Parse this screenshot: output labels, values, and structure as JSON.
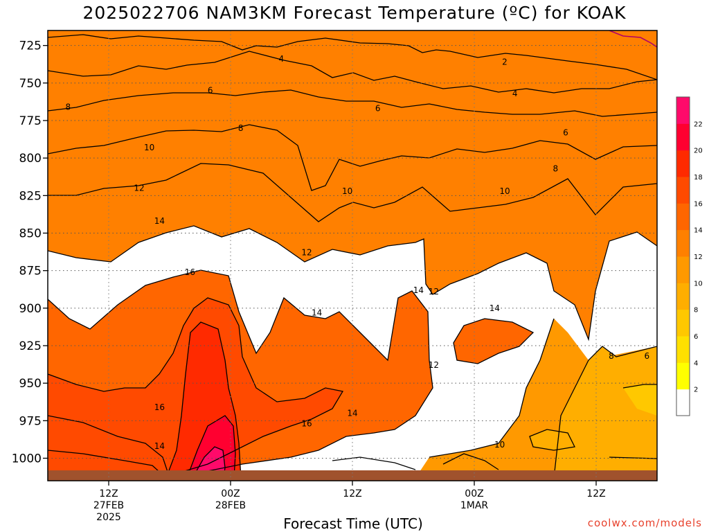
{
  "chart_data": {
    "type": "heatmap",
    "title": "2025022706 NAM3KM Forecast Temperature (ºC) for KOAK",
    "xlabel": "Forecast Time (UTC)",
    "ylabel": "",
    "y_ticks": [
      725,
      750,
      775,
      800,
      825,
      850,
      875,
      900,
      925,
      950,
      975,
      1000
    ],
    "ylim": [
      1015,
      715
    ],
    "x_ticks": [
      {
        "hour": 6,
        "line1": "12Z",
        "line2": "27FEB",
        "line3": "2025"
      },
      {
        "hour": 18,
        "line1": "00Z",
        "line2": "28FEB",
        "line3": ""
      },
      {
        "hour": 30,
        "line1": "12Z",
        "line2": "",
        "line3": ""
      },
      {
        "hour": 42,
        "line1": "00Z",
        "line2": "1MAR",
        "line3": ""
      },
      {
        "hour": 54,
        "line1": "12Z",
        "line2": "",
        "line3": ""
      }
    ],
    "xlim": [
      0,
      60
    ],
    "grid": true,
    "colorbar": {
      "levels": [
        0,
        2,
        4,
        6,
        8,
        10,
        12,
        14,
        16,
        18,
        20,
        22,
        24
      ],
      "tick_labels": [
        "2",
        "4",
        "6",
        "8",
        "10",
        "12",
        "14",
        "16",
        "18",
        "20",
        "22"
      ],
      "colors": [
        "#ffffff",
        "#ffff00",
        "#ffe000",
        "#ffc800",
        "#ffae00",
        "#ff9900",
        "#ff8000",
        "#ff6600",
        "#ff4a00",
        "#ff2a00",
        "#ff0030",
        "#ff0a6a"
      ]
    },
    "ground_color": "#a0522d",
    "contour_labels": [
      {
        "value": "2",
        "hour": 45.0,
        "pressure": 736
      },
      {
        "value": "4",
        "hour": 23.0,
        "pressure": 734
      },
      {
        "value": "4",
        "hour": 46.0,
        "pressure": 757
      },
      {
        "value": "6",
        "hour": 16.0,
        "pressure": 755
      },
      {
        "value": "6",
        "hour": 32.5,
        "pressure": 767
      },
      {
        "value": "6",
        "hour": 51.0,
        "pressure": 783
      },
      {
        "value": "8",
        "hour": 2.0,
        "pressure": 766
      },
      {
        "value": "8",
        "hour": 19.0,
        "pressure": 780
      },
      {
        "value": "8",
        "hour": 50.0,
        "pressure": 807
      },
      {
        "value": "10",
        "hour": 10.0,
        "pressure": 793
      },
      {
        "value": "10",
        "hour": 29.5,
        "pressure": 822
      },
      {
        "value": "10",
        "hour": 45.0,
        "pressure": 822
      },
      {
        "value": "10",
        "hour": 44.5,
        "pressure": 991
      },
      {
        "value": "12",
        "hour": 9.0,
        "pressure": 820
      },
      {
        "value": "12",
        "hour": 25.5,
        "pressure": 863
      },
      {
        "value": "12",
        "hour": 38.0,
        "pressure": 889
      },
      {
        "value": "12",
        "hour": 38.0,
        "pressure": 938
      },
      {
        "value": "14",
        "hour": 11.0,
        "pressure": 842
      },
      {
        "value": "14",
        "hour": 26.5,
        "pressure": 903
      },
      {
        "value": "14",
        "hour": 36.5,
        "pressure": 888
      },
      {
        "value": "14",
        "hour": 44.0,
        "pressure": 900
      },
      {
        "value": "14",
        "hour": 30.0,
        "pressure": 970
      },
      {
        "value": "14",
        "hour": 11.0,
        "pressure": 992
      },
      {
        "value": "16",
        "hour": 14.0,
        "pressure": 876
      },
      {
        "value": "16",
        "hour": 11.0,
        "pressure": 966
      },
      {
        "value": "16",
        "hour": 25.5,
        "pressure": 977
      },
      {
        "value": "8",
        "hour": 55.5,
        "pressure": 932
      },
      {
        "value": "6",
        "hour": 59.0,
        "pressure": 932
      }
    ]
  },
  "credit": "coolwx.com/models"
}
